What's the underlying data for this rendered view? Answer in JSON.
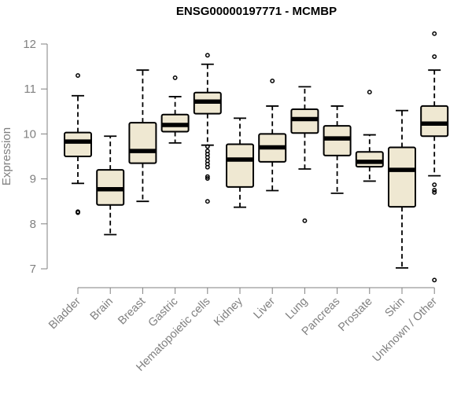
{
  "chart_data": {
    "type": "box",
    "title": "ENSG00000197771 - MCMBP",
    "xlabel": "",
    "ylabel": "Expression",
    "ylim": [
      7,
      12
    ],
    "yticks": [
      7,
      8,
      9,
      10,
      11,
      12
    ],
    "grid": false,
    "colors": {
      "box_fill": "#efe8d2",
      "stroke": "#000000",
      "axis": "#808080",
      "label": "#808080"
    },
    "categories": [
      "Bladder",
      "Brain",
      "Breast",
      "Gastric",
      "Hematopoietic cells",
      "Kidney",
      "Liver",
      "Lung",
      "Pancreas",
      "Prostate",
      "Skin",
      "Unknown / Other"
    ],
    "boxes": [
      {
        "whisker_low": 8.9,
        "q1": 9.5,
        "median": 9.83,
        "q3": 10.03,
        "whisker_high": 10.85,
        "outliers": [
          11.3,
          8.27,
          8.25
        ]
      },
      {
        "whisker_low": 7.76,
        "q1": 8.42,
        "median": 8.77,
        "q3": 9.2,
        "whisker_high": 9.95,
        "outliers": []
      },
      {
        "whisker_low": 8.5,
        "q1": 9.35,
        "median": 9.62,
        "q3": 10.25,
        "whisker_high": 11.42,
        "outliers": []
      },
      {
        "whisker_low": 9.8,
        "q1": 10.05,
        "median": 10.2,
        "q3": 10.43,
        "whisker_high": 10.83,
        "outliers": [
          11.25
        ]
      },
      {
        "whisker_low": 9.75,
        "q1": 10.45,
        "median": 10.72,
        "q3": 10.92,
        "whisker_high": 11.55,
        "outliers": [
          11.75,
          9.72,
          9.62,
          9.55,
          9.48,
          9.4,
          9.33,
          9.26,
          9.05,
          9.01,
          8.5
        ]
      },
      {
        "whisker_low": 8.37,
        "q1": 8.82,
        "median": 9.43,
        "q3": 9.77,
        "whisker_high": 10.35,
        "outliers": []
      },
      {
        "whisker_low": 8.74,
        "q1": 9.38,
        "median": 9.7,
        "q3": 10.0,
        "whisker_high": 10.62,
        "outliers": [
          11.18
        ]
      },
      {
        "whisker_low": 9.22,
        "q1": 10.02,
        "median": 10.33,
        "q3": 10.55,
        "whisker_high": 11.05,
        "outliers": [
          8.07
        ]
      },
      {
        "whisker_low": 8.68,
        "q1": 9.52,
        "median": 9.9,
        "q3": 10.18,
        "whisker_high": 10.62,
        "outliers": []
      },
      {
        "whisker_low": 8.95,
        "q1": 9.27,
        "median": 9.38,
        "q3": 9.6,
        "whisker_high": 9.98,
        "outliers": [
          10.93
        ]
      },
      {
        "whisker_low": 7.02,
        "q1": 8.38,
        "median": 9.2,
        "q3": 9.7,
        "whisker_high": 10.52,
        "outliers": []
      },
      {
        "whisker_low": 9.07,
        "q1": 9.95,
        "median": 10.23,
        "q3": 10.62,
        "whisker_high": 11.42,
        "outliers": [
          12.23,
          11.72,
          8.87,
          8.75,
          8.7,
          6.75
        ]
      }
    ]
  }
}
